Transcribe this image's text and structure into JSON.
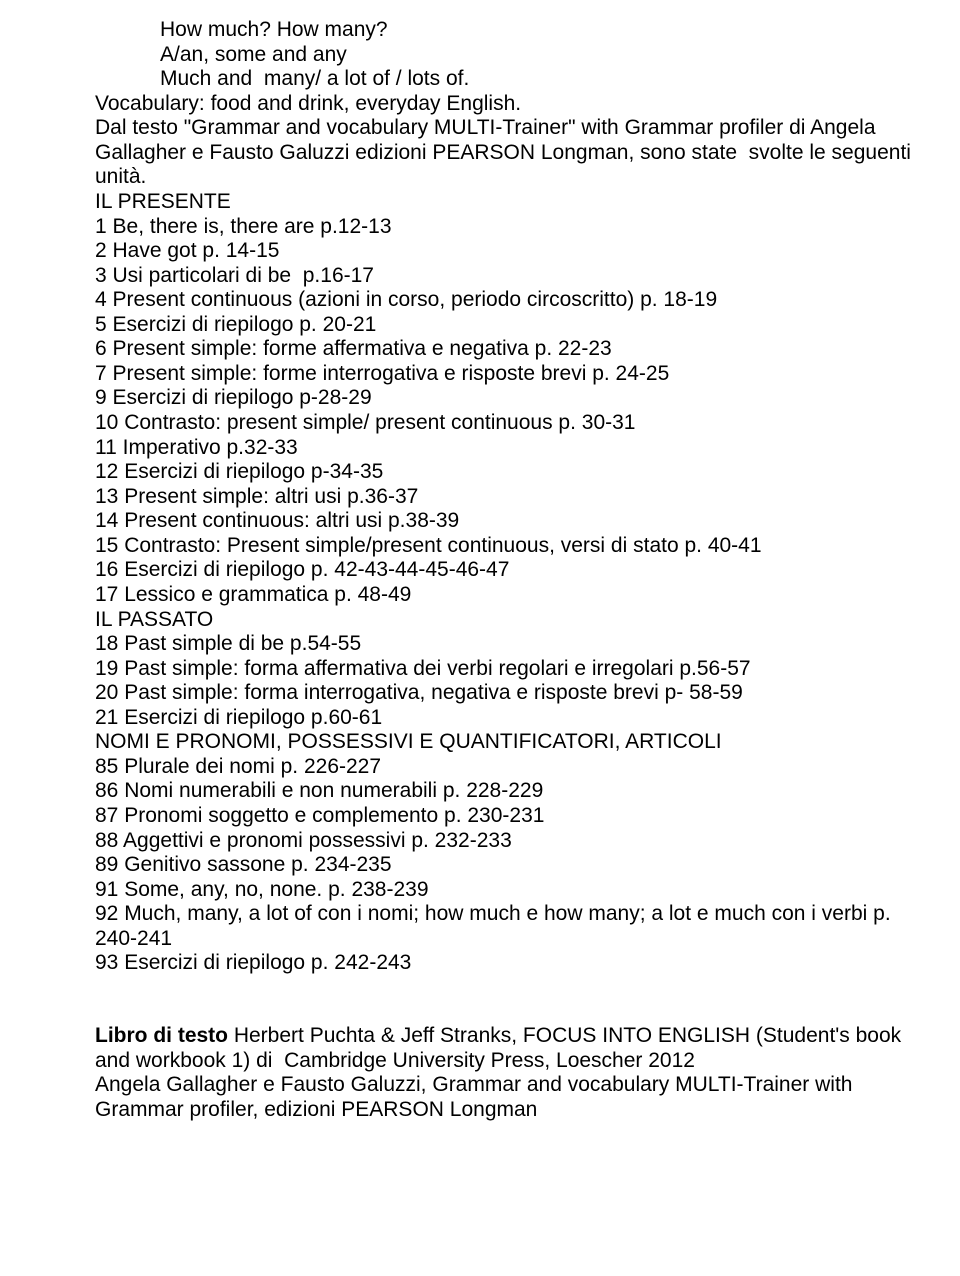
{
  "intro": {
    "lines": [
      "How much? How many?",
      "A/an, some and any",
      "Much and  many/ a lot of / lots of."
    ]
  },
  "vocab": "Vocabulary: food and drink, everyday English.",
  "source": [
    "Dal testo \"Grammar and vocabulary MULTI-Trainer\" with Grammar profiler di Angela",
    "Gallagher e Fausto Galuzzi edizioni PEARSON Longman, sono state  svolte le seguenti",
    "unità."
  ],
  "units": [
    "IL PRESENTE",
    "1 Be, there is, there are p.12-13",
    "2 Have got p. 14-15",
    "3 Usi particolari di be  p.16-17",
    "4 Present continuous (azioni in corso, periodo circoscritto) p. 18-19",
    "5 Esercizi di riepilogo p. 20-21",
    "6 Present simple: forme affermativa e negativa p. 22-23",
    "7 Present simple: forme interrogativa e risposte brevi p. 24-25",
    "9 Esercizi di riepilogo p-28-29",
    "10 Contrasto: present simple/ present continuous p. 30-31",
    "11 Imperativo p.32-33",
    "12 Esercizi di riepilogo p-34-35",
    "13 Present simple: altri usi p.36-37",
    "14 Present continuous: altri usi p.38-39",
    "15 Contrasto: Present simple/present continuous, versi di stato p. 40-41",
    "16 Esercizi di riepilogo p. 42-43-44-45-46-47",
    "17 Lessico e grammatica p. 48-49",
    "IL PASSATO",
    "18 Past simple di be p.54-55",
    "19 Past simple: forma affermativa dei verbi regolari e irregolari p.56-57",
    "20 Past simple: forma interrogativa, negativa e risposte brevi p- 58-59",
    "21 Esercizi di riepilogo p.60-61",
    "NOMI E PRONOMI, POSSESSIVI E QUANTIFICATORI, ARTICOLI",
    "85 Plurale dei nomi p. 226-227",
    "86 Nomi numerabili e non numerabili p. 228-229",
    "87 Pronomi soggetto e complemento p. 230-231",
    "88 Aggettivi e pronomi possessivi p. 232-233",
    "89 Genitivo sassone p. 234-235",
    "91 Some, any, no, none. p. 238-239",
    "92 Much, many, a lot of con i nomi; how much e how many; a lot e much con i verbi p.",
    "240-241",
    "93 Esercizi di riepilogo p. 242-243"
  ],
  "textbook": {
    "prefix_bold": "Libro di testo",
    "lines": [
      " Herbert Puchta & Jeff Stranks, FOCUS INTO ENGLISH (Student's book",
      "and workbook 1) di  Cambridge University Press, Loescher 2012",
      "Angela Gallagher e Fausto Galuzzi, Grammar and vocabulary MULTI-Trainer with",
      "Grammar profiler, edizioni PEARSON Longman"
    ]
  }
}
